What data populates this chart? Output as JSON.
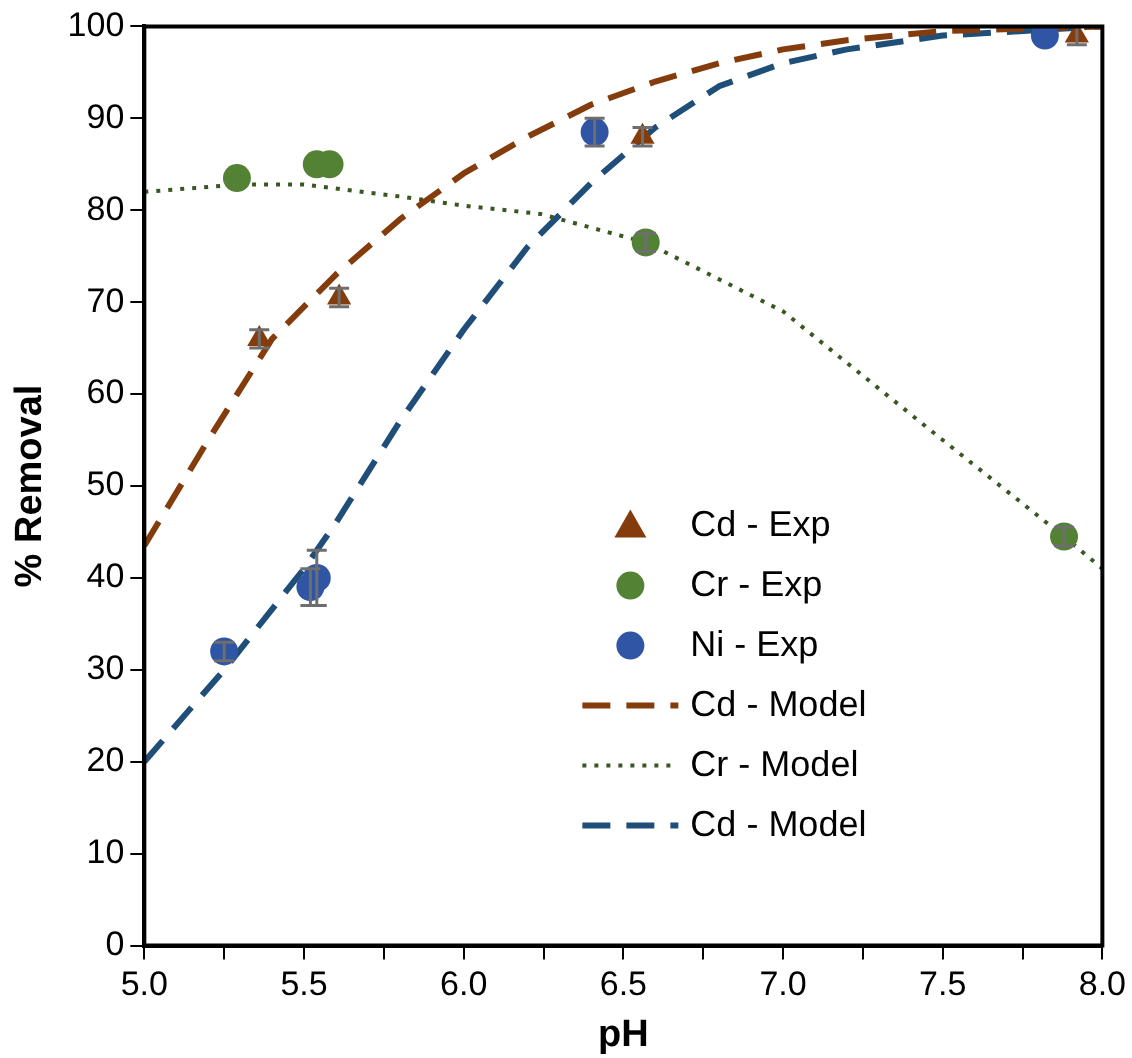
{
  "chart_data": {
    "type": "scatter",
    "xlabel": "pH",
    "ylabel": "% Removal",
    "xlim": [
      5.0,
      8.0
    ],
    "ylim": [
      0,
      100
    ],
    "xticks": [
      {
        "value": 5.0,
        "label": "5.0"
      },
      {
        "value": 5.25,
        "label": null
      },
      {
        "value": 5.5,
        "label": "5.5"
      },
      {
        "value": 5.75,
        "label": null
      },
      {
        "value": 6.0,
        "label": "6.0"
      },
      {
        "value": 6.25,
        "label": null
      },
      {
        "value": 6.5,
        "label": "6.5"
      },
      {
        "value": 6.75,
        "label": null
      },
      {
        "value": 7.0,
        "label": "7.0"
      },
      {
        "value": 7.25,
        "label": null
      },
      {
        "value": 7.5,
        "label": "7.5"
      },
      {
        "value": 7.75,
        "label": null
      },
      {
        "value": 8.0,
        "label": "8.0"
      }
    ],
    "yticks": [
      0,
      10,
      20,
      30,
      40,
      50,
      60,
      70,
      80,
      90,
      100
    ],
    "grid": false,
    "legend": "bottom right",
    "series": [
      {
        "name": "Cd - Exp",
        "type": "scatter",
        "marker": "triangle",
        "color": "#843c0c",
        "x": [
          5.36,
          5.61,
          6.56,
          7.92
        ],
        "values": [
          66,
          70.5,
          88,
          99
        ],
        "errors": [
          1,
          1,
          1,
          1
        ]
      },
      {
        "name": "Cr - Exp",
        "type": "scatter",
        "marker": "circle",
        "color": "#548235",
        "x": [
          5.29,
          5.54,
          5.58,
          6.57,
          7.88
        ],
        "values": [
          83.5,
          85,
          85,
          76.5,
          44.5
        ],
        "errors": [
          null,
          null,
          null,
          1,
          1
        ]
      },
      {
        "name": "Ni - Exp",
        "type": "scatter",
        "marker": "circle",
        "color": "#2f55a4",
        "x": [
          5.25,
          5.52,
          5.54,
          6.41,
          7.82
        ],
        "values": [
          32,
          39,
          40,
          88.5,
          99
        ],
        "errors": [
          1,
          2,
          3,
          1.5,
          null
        ]
      },
      {
        "name": "Cd - Model",
        "type": "line",
        "marker": "none",
        "line_style": "dashed",
        "color": "#843c0c",
        "x": [
          5.0,
          5.2,
          5.4,
          5.6,
          5.8,
          6.0,
          6.2,
          6.4,
          6.6,
          6.8,
          7.0,
          7.2,
          7.5,
          8.0
        ],
        "values": [
          43.5,
          55,
          66,
          73,
          79,
          84,
          88,
          91.5,
          94,
          96,
          97.5,
          98.5,
          99.5,
          100
        ]
      },
      {
        "name": "Cr - Model",
        "type": "line",
        "marker": "none",
        "line_style": "dotted",
        "color": "#385723",
        "x": [
          5.0,
          5.3,
          5.5,
          5.8,
          6.0,
          6.24,
          6.57,
          7.0,
          7.5,
          7.88,
          8.0
        ],
        "values": [
          82,
          82.8,
          82.8,
          81.5,
          80.5,
          79.6,
          76.5,
          69,
          55,
          44.5,
          41
        ]
      },
      {
        "name": "Cd - Model",
        "type": "line",
        "marker": "none",
        "line_style": "dashed",
        "color": "#1f4e79",
        "x": [
          5.0,
          5.25,
          5.5,
          5.6,
          5.8,
          6.0,
          6.2,
          6.4,
          6.6,
          6.8,
          7.0,
          7.2,
          7.5,
          8.0
        ],
        "values": [
          20,
          30,
          41,
          46,
          57,
          67,
          76,
          83,
          89,
          93.5,
          96,
          97.5,
          99,
          100
        ]
      }
    ]
  }
}
